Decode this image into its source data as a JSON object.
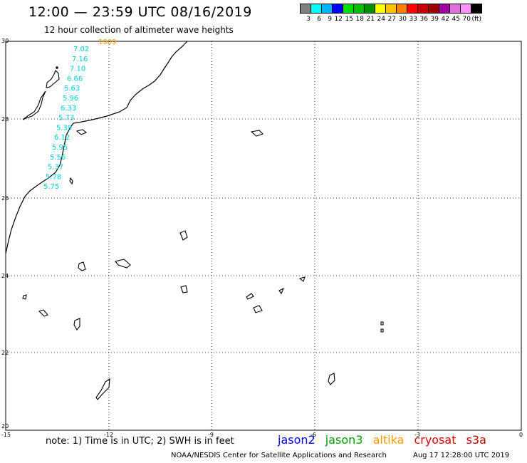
{
  "header": {
    "title": "12:00 — 23:59 UTC 08/16/2019",
    "subtitle": "12 hour collection of altimeter wave heights"
  },
  "legend": {
    "colors": [
      "#808080",
      "#00ffff",
      "#00b4ff",
      "#0000ff",
      "#00e000",
      "#00c000",
      "#009000",
      "#ffff00",
      "#ffc000",
      "#ff8000",
      "#ff0000",
      "#c80000",
      "#a00000",
      "#a000a0",
      "#e070e0",
      "#ff90ff",
      "#000000"
    ],
    "labels": [
      "3",
      "6",
      "9",
      "12",
      "15",
      "18",
      "21",
      "24",
      "27",
      "30",
      "33",
      "36",
      "39",
      "42",
      "45",
      "70",
      "(ft)"
    ]
  },
  "map": {
    "x_ticks": [
      "-15",
      "-12",
      "-9",
      "-6",
      "-3",
      "0"
    ],
    "y_ticks": [
      "30",
      "28",
      "26",
      "24",
      "22",
      "20"
    ],
    "wave_color": "#00ccdd",
    "time_color": "#ff9900",
    "time_label": "1909",
    "wave_heights": [
      "7.02",
      "7.16",
      "7.10",
      "6.66",
      "5.63",
      "5.96",
      "6.33",
      "5.73",
      "5.39",
      "6.12",
      "5.95",
      "5.56",
      "5.37",
      "5.78",
      "5.75"
    ]
  },
  "note": "note: 1) Time is in UTC; 2) SWH is in feet",
  "satellites": [
    {
      "name": "jason2",
      "color": "#0000ff"
    },
    {
      "name": "jason3",
      "color": "#00a000"
    },
    {
      "name": "altika",
      "color": "#ff9900"
    },
    {
      "name": "cryosat",
      "color": "#dd0000"
    },
    {
      "name": "s3a",
      "color": "#c00000"
    }
  ],
  "footer": "NOAA/NESDIS Center for Satellite Applications and Research",
  "timestamp": "Aug 17 12:28:00 UTC 2019"
}
